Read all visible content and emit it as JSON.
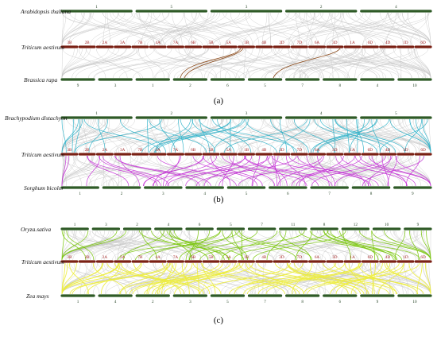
{
  "colors": {
    "green_chromosome": "#2e5a26",
    "red_chromosome": "#7a2014",
    "background_links": "#c4c4c4",
    "panel_a_links": "#8b4a1a",
    "panel_b_links_top": "#29b0c8",
    "panel_b_links_bottom": "#c42ed6",
    "panel_c_links_top": "#7ac70c",
    "panel_c_links_bottom": "#ecec3e"
  },
  "triticum_chromosomes": [
    "3B",
    "2B",
    "2A",
    "3A",
    "7B",
    "4A",
    "7A",
    "6B",
    "5B",
    "5A",
    "1B",
    "4B",
    "2D",
    "7D",
    "6A",
    "3D",
    "1A",
    "6D",
    "4D",
    "1D",
    "6D"
  ],
  "panels": [
    {
      "label": "(a)",
      "top_species": "Arabidopsis thaliana",
      "top_chromosomes": [
        "1",
        "5",
        "3",
        "2",
        "4"
      ],
      "mid_species": "Triticum aestivum",
      "bottom_species": "Brassica rapa",
      "bottom_chromosomes": [
        "9",
        "3",
        "1",
        "2",
        "6",
        "5",
        "7",
        "8",
        "4",
        "10"
      ]
    },
    {
      "label": "(b)",
      "top_species": "Brachypodium distachyon",
      "top_chromosomes": [
        "1",
        "2",
        "3",
        "4",
        "5"
      ],
      "mid_species": "Triticum aestivum",
      "bottom_species": "Sorghum bicolor",
      "bottom_chromosomes": [
        "1",
        "2",
        "3",
        "4",
        "5",
        "6",
        "7",
        "8",
        "9"
      ]
    },
    {
      "label": "(c)",
      "top_species": "Oryza.sativa",
      "top_chromosomes": [
        "1",
        "3",
        "2",
        "4",
        "6",
        "5",
        "7",
        "11",
        "8",
        "12",
        "10",
        "9"
      ],
      "mid_species": "Triticum aestivum",
      "bottom_species": "Zea mays",
      "bottom_chromosomes": [
        "1",
        "4",
        "2",
        "3",
        "5",
        "7",
        "8",
        "6",
        "9",
        "10"
      ]
    }
  ]
}
